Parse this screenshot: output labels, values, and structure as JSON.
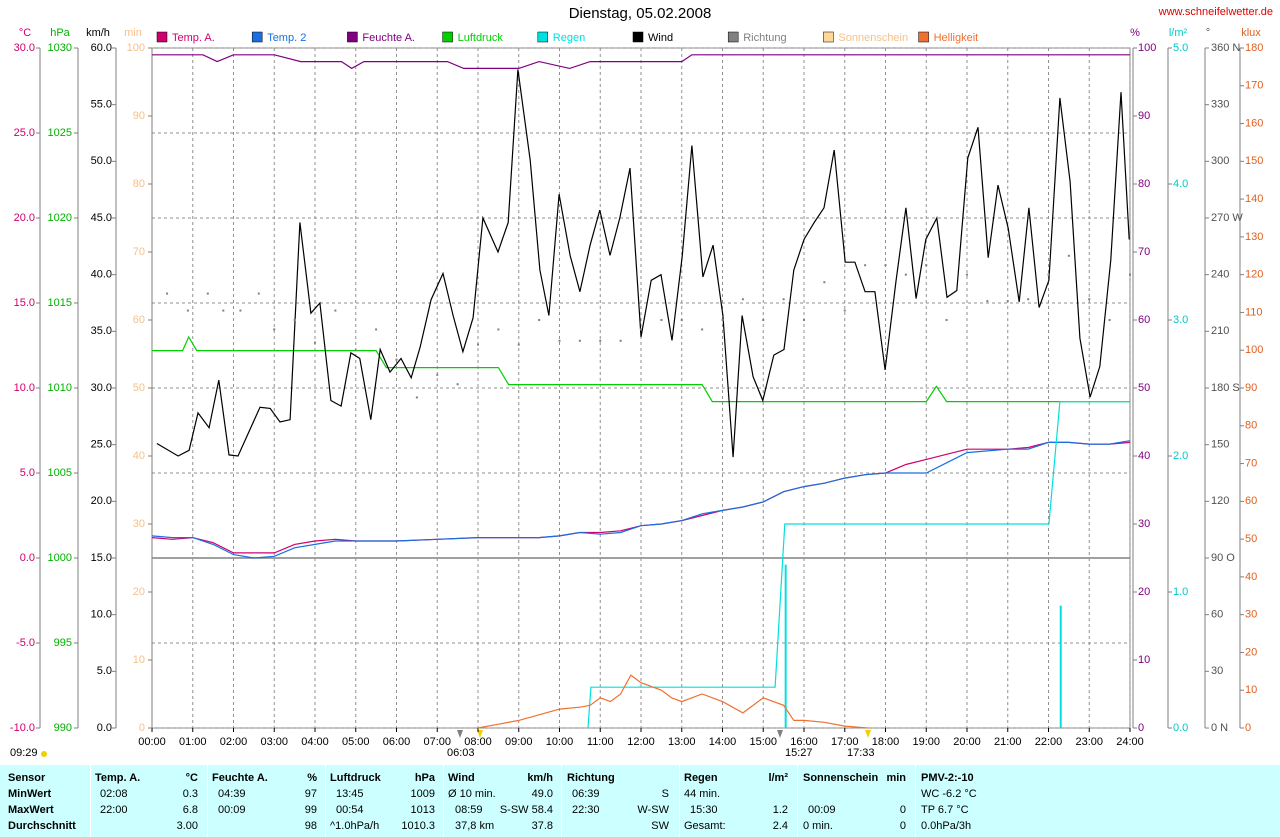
{
  "chart_data": {
    "type": "line",
    "title": "Dienstag, 05.02.2008",
    "source": "www.schneifelwetter.de",
    "grid": true,
    "xlim": [
      0,
      24
    ],
    "xticks": [
      {
        "value": 0,
        "label": "00:00"
      },
      {
        "value": 1,
        "label": "01:00"
      },
      {
        "value": 2,
        "label": "02:00"
      },
      {
        "value": 3,
        "label": "03:00"
      },
      {
        "value": 4,
        "label": "04:00"
      },
      {
        "value": 5,
        "label": "05:00"
      },
      {
        "value": 6,
        "label": "06:00"
      },
      {
        "value": 7,
        "label": "07:00"
      },
      {
        "value": 8,
        "label": "08:00"
      },
      {
        "value": 9,
        "label": "09:00"
      },
      {
        "value": 10,
        "label": "10:00"
      },
      {
        "value": 11,
        "label": "11:00"
      },
      {
        "value": 12,
        "label": "12:00"
      },
      {
        "value": 13,
        "label": "13:00"
      },
      {
        "value": 14,
        "label": "14:00"
      },
      {
        "value": 15,
        "label": "15:00"
      },
      {
        "value": 16,
        "label": "16:00"
      },
      {
        "value": 17,
        "label": "17:00"
      },
      {
        "value": 18,
        "label": "18:00"
      },
      {
        "value": 19,
        "label": "19:00"
      },
      {
        "value": 20,
        "label": "20:00"
      },
      {
        "value": 21,
        "label": "21:00"
      },
      {
        "value": 22,
        "label": "22:00"
      },
      {
        "value": 23,
        "label": "23:00"
      },
      {
        "value": 24,
        "label": "24:00"
      }
    ],
    "y_axes": [
      {
        "label": "°C",
        "color": "#d0006f",
        "ylim": [
          -10,
          30
        ],
        "yticks": [
          {
            "value": -10,
            "label": "-10.0"
          },
          {
            "value": -5,
            "label": "-5.0"
          },
          {
            "value": 0,
            "label": "0.0"
          },
          {
            "value": 5,
            "label": "5.0"
          },
          {
            "value": 10,
            "label": "10.0"
          },
          {
            "value": 15,
            "label": "15.0"
          },
          {
            "value": 20,
            "label": "20.0"
          },
          {
            "value": 25,
            "label": "25.0"
          },
          {
            "value": 30,
            "label": "30.0"
          }
        ]
      },
      {
        "label": "hPa",
        "color": "#00b000",
        "ylim": [
          990,
          1030
        ],
        "yticks": [
          990,
          995,
          1000,
          1005,
          1010,
          1015,
          1020,
          1025,
          1030
        ]
      },
      {
        "label": "km/h",
        "color": "#000000",
        "ylim": [
          0,
          60
        ],
        "yticks": [
          {
            "value": 0,
            "label": "0.0"
          },
          {
            "value": 5,
            "label": "5.0"
          },
          {
            "value": 10,
            "label": "10.0"
          },
          {
            "value": 15,
            "label": "15.0"
          },
          {
            "value": 20,
            "label": "20.0"
          },
          {
            "value": 25,
            "label": "25.0"
          },
          {
            "value": 30,
            "label": "30.0"
          },
          {
            "value": 35,
            "label": "35.0"
          },
          {
            "value": 40,
            "label": "40.0"
          },
          {
            "value": 45,
            "label": "45.0"
          },
          {
            "value": 50,
            "label": "50.0"
          },
          {
            "value": 55,
            "label": "55.0"
          },
          {
            "value": 60,
            "label": "60.0"
          }
        ]
      },
      {
        "label": "min",
        "color": "#f5c08a",
        "ylim": [
          0,
          100
        ],
        "yticks": [
          0,
          10,
          20,
          30,
          40,
          50,
          60,
          70,
          80,
          90,
          100
        ]
      },
      {
        "label": "%",
        "color": "#800080",
        "ylim": [
          0,
          100
        ],
        "yticks": [
          0,
          10,
          20,
          30,
          40,
          50,
          60,
          70,
          80,
          90,
          100
        ]
      },
      {
        "label": "l/m²",
        "color": "#00c8c8",
        "ylim": [
          0,
          5
        ],
        "yticks": [
          {
            "value": 0,
            "label": "0.0"
          },
          {
            "value": 1,
            "label": "1.0"
          },
          {
            "value": 2,
            "label": "2.0"
          },
          {
            "value": 3,
            "label": "3.0"
          },
          {
            "value": 4,
            "label": "4.0"
          },
          {
            "value": 5,
            "label": "5.0"
          }
        ]
      },
      {
        "label": "°",
        "color": "#505050",
        "ylim": [
          0,
          360
        ],
        "yticks": [
          {
            "value": 0,
            "label": "0 N"
          },
          30,
          60,
          {
            "value": 90,
            "label": "90 O"
          },
          120,
          150,
          {
            "value": 180,
            "label": "180 S"
          },
          210,
          240,
          {
            "value": 270,
            "label": "270 W"
          },
          300,
          330,
          {
            "value": 360,
            "label": "360 N"
          }
        ]
      },
      {
        "label": "klux",
        "color": "#e06020",
        "ylim": [
          0,
          180
        ],
        "yticks": [
          0,
          10,
          20,
          30,
          40,
          50,
          60,
          70,
          80,
          90,
          100,
          110,
          120,
          130,
          140,
          150,
          160,
          170,
          180
        ]
      }
    ],
    "series": [
      {
        "name": "Temp. A.",
        "color": "#d0006f",
        "axis": 0,
        "x": [
          0,
          0.5,
          1,
          1.5,
          2,
          2.5,
          3,
          3.5,
          4,
          4.5,
          5,
          6,
          7,
          8,
          9,
          9.5,
          10,
          10.5,
          11,
          11.5,
          12,
          12.5,
          13,
          13.5,
          14,
          14.5,
          15,
          15.5,
          16,
          16.5,
          17,
          17.5,
          18,
          18.5,
          19,
          19.5,
          20,
          20.5,
          21,
          21.5,
          22,
          22.5,
          23,
          23.5,
          24
        ],
        "values": [
          1.2,
          1.1,
          1.2,
          0.9,
          0.3,
          0.3,
          0.3,
          0.8,
          1.0,
          1.1,
          1.0,
          1.0,
          1.1,
          1.2,
          1.2,
          1.2,
          1.3,
          1.5,
          1.5,
          1.6,
          1.9,
          2.0,
          2.2,
          2.5,
          2.8,
          3.0,
          3.3,
          3.9,
          4.2,
          4.4,
          4.7,
          4.9,
          5.0,
          5.5,
          5.8,
          6.1,
          6.4,
          6.4,
          6.4,
          6.5,
          6.8,
          6.8,
          6.7,
          6.7,
          6.8
        ]
      },
      {
        "name": "Temp. 2",
        "color": "#1a6fe0",
        "axis": 0,
        "x": [
          0,
          0.5,
          1,
          1.5,
          2,
          2.5,
          3,
          3.5,
          4,
          4.5,
          5,
          6,
          7,
          8,
          9,
          9.5,
          10,
          10.5,
          11,
          11.5,
          12,
          12.5,
          13,
          13.5,
          14,
          14.5,
          15,
          15.5,
          16,
          16.5,
          17,
          17.5,
          18,
          18.5,
          19,
          19.5,
          20,
          20.5,
          21,
          21.5,
          22,
          22.5,
          23,
          23.5,
          24
        ],
        "values": [
          1.3,
          1.2,
          1.2,
          0.8,
          0.2,
          0.0,
          0.1,
          0.6,
          0.8,
          1.0,
          1.0,
          1.0,
          1.1,
          1.2,
          1.2,
          1.2,
          1.3,
          1.5,
          1.4,
          1.5,
          1.9,
          2.0,
          2.2,
          2.6,
          2.8,
          3.0,
          3.3,
          3.9,
          4.2,
          4.4,
          4.7,
          4.9,
          5.0,
          5.0,
          5.0,
          5.6,
          6.2,
          6.3,
          6.4,
          6.4,
          6.8,
          6.8,
          6.7,
          6.7,
          6.9
        ]
      },
      {
        "name": "Feuchte A.",
        "color": "#800080",
        "axis": 4,
        "x": [
          0,
          1.25,
          1.6,
          2.0,
          3.0,
          3.65,
          4.65,
          4.9,
          5.2,
          7.25,
          7.65,
          9.0,
          9.5,
          10.25,
          10.75,
          13.0,
          13.25,
          24
        ],
        "values": [
          99,
          99,
          98,
          99,
          99,
          98,
          98,
          97,
          98,
          98,
          97,
          97,
          98,
          97,
          98,
          98,
          99,
          99
        ]
      },
      {
        "name": "Luftdruck",
        "color": "#00d000",
        "axis": 1,
        "x": [
          0,
          0.75,
          0.9,
          1.1,
          5.5,
          5.75,
          8.5,
          8.75,
          13.5,
          13.75,
          19.0,
          19.25,
          19.5,
          24
        ],
        "values": [
          1012.2,
          1012.2,
          1013.0,
          1012.2,
          1012.2,
          1011.2,
          1011.2,
          1010.2,
          1010.2,
          1009.2,
          1009.2,
          1010.1,
          1009.2,
          1009.2
        ]
      },
      {
        "name": "Regen",
        "color": "#00e0e0",
        "axis": 5,
        "x": [
          10.7,
          10.77,
          15.29,
          15.53,
          22.01,
          22.28,
          24
        ],
        "values": [
          0,
          0.3,
          0.3,
          1.5,
          1.5,
          2.4,
          2.4
        ]
      },
      {
        "name": "Wind",
        "color": "#000000",
        "axis": 2,
        "x": [
          0.12,
          0.64,
          0.91,
          1.13,
          1.4,
          1.64,
          1.89,
          2.11,
          2.65,
          2.9,
          3.14,
          3.39,
          3.63,
          3.9,
          4.12,
          4.39,
          4.64,
          4.88,
          5.1,
          5.37,
          5.6,
          5.84,
          6.11,
          6.36,
          6.58,
          6.85,
          7.14,
          7.39,
          7.63,
          7.88,
          8.12,
          8.49,
          8.74,
          8.98,
          9.28,
          9.52,
          9.74,
          9.99,
          10.26,
          10.5,
          10.75,
          10.99,
          11.24,
          11.48,
          11.73,
          12.0,
          12.25,
          12.49,
          12.76,
          13.01,
          13.25,
          13.52,
          13.77,
          14.01,
          14.26,
          14.48,
          14.75,
          14.99,
          15.26,
          15.51,
          15.75,
          16.0,
          16.25,
          16.49,
          16.74,
          17.01,
          17.25,
          17.5,
          17.74,
          17.99,
          18.26,
          18.5,
          18.75,
          18.99,
          19.26,
          19.51,
          19.75,
          20.02,
          20.27,
          20.52,
          20.76,
          21.01,
          21.28,
          21.52,
          21.77,
          22.01,
          22.28,
          22.53,
          22.77,
          23.02,
          23.26,
          23.53,
          23.78,
          23.98
        ],
        "values": [
          25.1,
          24.0,
          24.5,
          27.8,
          26.5,
          30.7,
          24.1,
          24.0,
          28.3,
          28.2,
          27.0,
          27.2,
          44.6,
          36.6,
          37.5,
          28.9,
          28.4,
          33.1,
          32.6,
          27.2,
          33.4,
          31.4,
          32.6,
          30.9,
          33.6,
          37.8,
          40.1,
          36.4,
          33.2,
          36.2,
          45.0,
          42.0,
          44.6,
          58.1,
          50.1,
          40.4,
          36.4,
          47.1,
          41.7,
          38.5,
          42.6,
          45.7,
          41.7,
          45.0,
          49.4,
          34.5,
          39.5,
          40.0,
          34.2,
          41.6,
          51.4,
          39.8,
          42.6,
          36.4,
          23.9,
          36.4,
          31.0,
          28.9,
          32.9,
          33.4,
          40.4,
          43.1,
          44.6,
          45.9,
          51.0,
          41.1,
          41.1,
          38.5,
          38.5,
          31.6,
          39.5,
          45.9,
          37.9,
          43.1,
          45.0,
          38.0,
          38.6,
          50.3,
          53.0,
          41.5,
          47.9,
          44.1,
          37.6,
          45.9,
          37.1,
          39.5,
          55.6,
          48.2,
          34.4,
          29.2,
          31.9,
          41.3,
          56.1,
          43.1
        ]
      },
      {
        "name": "Richtung",
        "color": "#808080",
        "axis": 6,
        "style": "dots",
        "x": [
          0.37,
          0.88,
          1.37,
          1.75,
          2.17,
          2.62,
          3.0,
          3.5,
          4.0,
          4.5,
          5.0,
          5.5,
          6.0,
          6.5,
          7.0,
          7.5,
          8.0,
          8.5,
          9.0,
          9.5,
          10.0,
          10.5,
          11.0,
          11.5,
          12.0,
          12.5,
          13.0,
          13.5,
          14.0,
          14.5,
          15.0,
          15.5,
          16.0,
          16.5,
          17.0,
          17.5,
          18.0,
          18.5,
          19.0,
          19.5,
          20.0,
          20.5,
          21.0,
          21.5,
          22.0,
          22.5,
          23.0,
          23.5,
          24
        ],
        "values": [
          230,
          221,
          230,
          221,
          221,
          230,
          211,
          216,
          204,
          221,
          200,
          211,
          195,
          175,
          187,
          182,
          203,
          211,
          203,
          216,
          205,
          205,
          205,
          205,
          211,
          216,
          216,
          211,
          216,
          227,
          216,
          227,
          216,
          236,
          221,
          245,
          245,
          240,
          245,
          216,
          240,
          226,
          226,
          227,
          240,
          250,
          227,
          216,
          240
        ]
      },
      {
        "name": "Sonnenschein",
        "color": "#ffd898",
        "axis": 3,
        "x": [],
        "values": []
      },
      {
        "name": "Helligkeit",
        "color": "#f07030",
        "axis": 7,
        "x": [
          8.0,
          8.5,
          9.0,
          9.5,
          10.0,
          10.5,
          10.75,
          11.0,
          11.25,
          11.5,
          11.75,
          12.0,
          12.25,
          12.5,
          12.75,
          13.0,
          13.5,
          14.0,
          14.5,
          15.0,
          15.5,
          15.75,
          16.0,
          16.5,
          17.0,
          17.33,
          17.57
        ],
        "values": [
          0,
          1,
          2,
          3.5,
          5,
          5.5,
          6,
          8,
          7,
          9,
          14,
          12,
          11,
          10,
          8,
          7,
          9,
          7,
          4,
          8,
          6,
          2,
          2,
          1.5,
          0.5,
          0.2,
          0
        ]
      }
    ],
    "rain_bars": {
      "color": "#00e0e0",
      "axis": 5,
      "x": [
        15.55,
        22.3
      ],
      "values": [
        1.2,
        0.9
      ]
    },
    "annotations": [
      "09:29",
      "06:03",
      "15:27",
      "17:33"
    ]
  },
  "summary": {
    "header": [
      "Sensor",
      "Temp. A.",
      "°C",
      "Feuchte A.",
      "%",
      "Luftdruck",
      "hPa",
      "Wind",
      "km/h",
      "Richtung",
      "Regen",
      "l/m²",
      "Sonnenschein",
      "min",
      "PMV-2:-10"
    ],
    "rows": [
      [
        "MinWert",
        "02:08",
        "0.3",
        "04:39",
        "97",
        "13:45",
        "1009",
        "Ø 10 min.",
        "49.0",
        "06:39",
        "S",
        "44 min.",
        "WC -6.2 °C"
      ],
      [
        "MaxWert",
        "22:00",
        "6.8",
        "00:09",
        "99",
        "00:54",
        "1013",
        "08:59",
        "S-SW 58.4",
        "22:30",
        "W-SW",
        "15:30",
        "1.2",
        "00:09",
        "0",
        "TP 6.7 °C"
      ],
      [
        "Durchschnitt",
        "3.00",
        "98",
        "^1.0hPa/h",
        "1010.3",
        "37,8 km",
        "37.8",
        "SW",
        "Gesamt:",
        "2.4",
        "0 min.",
        "0",
        "0.0hPa/3h"
      ]
    ]
  }
}
